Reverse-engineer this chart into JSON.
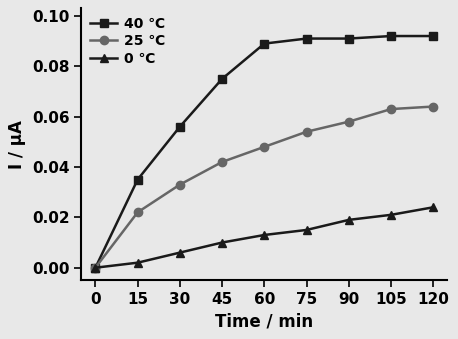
{
  "time": [
    0,
    15,
    30,
    45,
    60,
    75,
    90,
    105,
    120
  ],
  "series_40C": [
    0.0,
    0.035,
    0.056,
    0.075,
    0.089,
    0.091,
    0.091,
    0.092,
    0.092
  ],
  "series_25C": [
    0.0,
    0.022,
    0.033,
    0.042,
    0.048,
    0.054,
    0.058,
    0.063,
    0.064
  ],
  "series_0C": [
    0.0,
    0.002,
    0.006,
    0.01,
    0.013,
    0.015,
    0.019,
    0.021,
    0.024
  ],
  "label_40C": "40 ℃",
  "label_25C": "25 ℃",
  "label_0C": "0 ℃",
  "xlabel": "Time / min",
  "ylabel": "I / μA",
  "xlim": [
    -5,
    125
  ],
  "ylim": [
    -0.005,
    0.103
  ],
  "yticks": [
    0.0,
    0.02,
    0.04,
    0.06,
    0.08,
    0.1
  ],
  "xticks": [
    0,
    15,
    30,
    45,
    60,
    75,
    90,
    105,
    120
  ],
  "color_40C": "#1a1a1a",
  "color_25C": "#666666",
  "color_0C": "#1a1a1a",
  "bg_color": "#e8e8e8",
  "line_width": 1.8,
  "marker_size_square": 6,
  "marker_size_circle": 6,
  "marker_size_triangle": 6,
  "tick_fontsize": 11,
  "label_fontsize": 12,
  "legend_fontsize": 10
}
